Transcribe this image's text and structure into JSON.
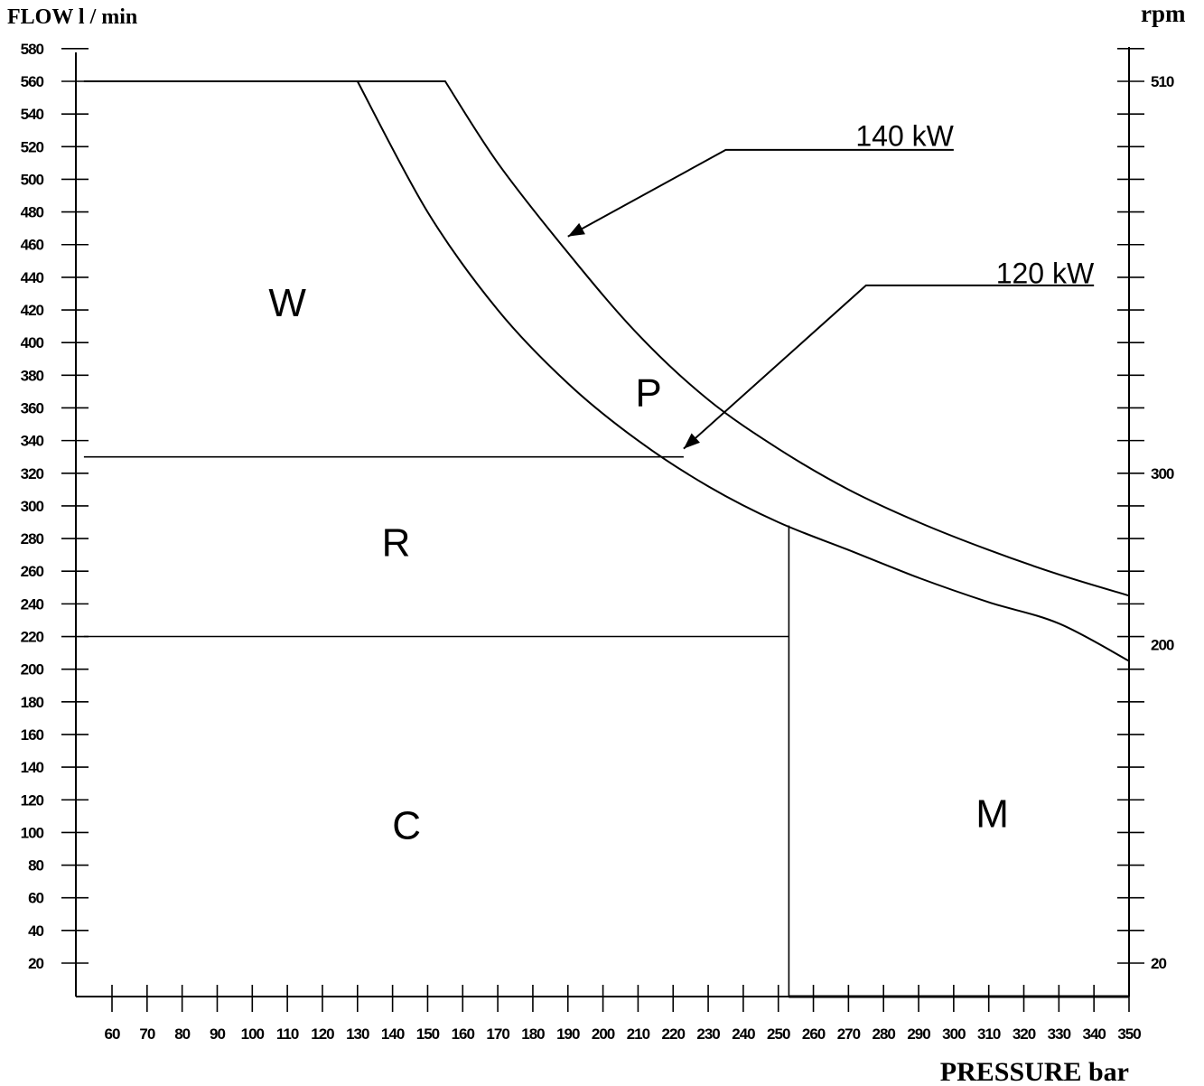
{
  "chart_data": {
    "type": "line",
    "ylabel": "FLOW l / min",
    "ylabel_right": "rpm",
    "xlabel": "PRESSURE bar",
    "xlim": [
      50,
      360
    ],
    "ylim": [
      0,
      580
    ],
    "x_ticks": [
      "60",
      "70",
      "80",
      "90",
      "100",
      "110",
      "120",
      "130",
      "140",
      "150",
      "160",
      "170",
      "180",
      "190",
      "200",
      "210",
      "220",
      "230",
      "240",
      "250",
      "260",
      "270",
      "280",
      "290",
      "300",
      "310",
      "320",
      "330",
      "340",
      "350"
    ],
    "y_ticks": [
      "20",
      "40",
      "60",
      "80",
      "100",
      "120",
      "140",
      "160",
      "180",
      "200",
      "220",
      "240",
      "260",
      "280",
      "300",
      "320",
      "340",
      "360",
      "380",
      "400",
      "420",
      "440",
      "460",
      "480",
      "500",
      "520",
      "540",
      "560",
      "580"
    ],
    "right_ticks": [
      {
        "label": "20",
        "flow": 20
      },
      {
        "label": "200",
        "flow": 215
      },
      {
        "label": "300",
        "flow": 320
      },
      {
        "label": "510",
        "flow": 560
      }
    ],
    "series": [
      {
        "name": "140 kW",
        "points": [
          [
            52,
            560
          ],
          [
            155,
            560
          ],
          [
            170,
            510
          ],
          [
            190,
            455
          ],
          [
            210,
            405
          ],
          [
            230,
            365
          ],
          [
            250,
            335
          ],
          [
            270,
            310
          ],
          [
            290,
            290
          ],
          [
            310,
            273
          ],
          [
            330,
            258
          ],
          [
            350,
            245
          ]
        ]
      },
      {
        "name": "120 kW",
        "points": [
          [
            130,
            560
          ],
          [
            150,
            480
          ],
          [
            170,
            420
          ],
          [
            190,
            375
          ],
          [
            210,
            340
          ],
          [
            230,
            312
          ],
          [
            250,
            290
          ],
          [
            270,
            273
          ],
          [
            290,
            256
          ],
          [
            310,
            241
          ],
          [
            330,
            228
          ],
          [
            350,
            205
          ]
        ]
      }
    ],
    "boundaries": [
      {
        "points": [
          [
            52,
            330
          ],
          [
            223,
            330
          ]
        ]
      },
      {
        "points": [
          [
            52,
            220
          ],
          [
            253,
            220
          ]
        ]
      },
      {
        "points": [
          [
            253,
            220
          ],
          [
            253,
            288
          ]
        ]
      },
      {
        "points": [
          [
            253,
            0
          ],
          [
            253,
            220
          ]
        ]
      }
    ],
    "regions": [
      {
        "label": "W",
        "x": 110,
        "y": 425
      },
      {
        "label": "P",
        "x": 213,
        "y": 370
      },
      {
        "label": "R",
        "x": 141,
        "y": 278
      },
      {
        "label": "C",
        "x": 144,
        "y": 105
      },
      {
        "label": "M",
        "x": 311,
        "y": 112
      }
    ],
    "annotations": [
      {
        "text": "140 kW",
        "x": 300,
        "y": 527,
        "arrow_from": [
          300,
          518
        ],
        "arrow_via": [
          235,
          518
        ],
        "arrow_to": [
          190,
          465
        ]
      },
      {
        "text": "120 kW",
        "x": 340,
        "y": 443,
        "arrow_from": [
          340,
          435
        ],
        "arrow_via": [
          275,
          435
        ],
        "arrow_to": [
          223,
          335
        ]
      }
    ],
    "grid": false,
    "legend": "none"
  }
}
